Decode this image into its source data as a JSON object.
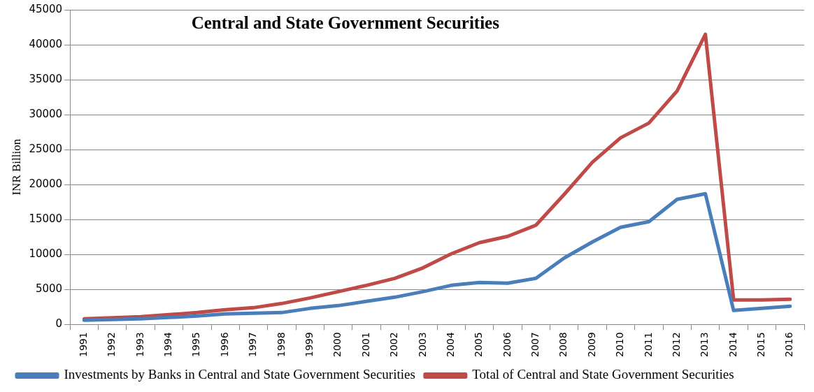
{
  "chart_data": {
    "type": "line",
    "title": "Central and State Government Securities",
    "ylabel": "INR Billion",
    "categories": [
      "1991",
      "1992",
      "1993",
      "1994",
      "1995",
      "1996",
      "1997",
      "1998",
      "1999",
      "2000",
      "2001",
      "2002",
      "2003",
      "2004",
      "2005",
      "2006",
      "2007",
      "2008",
      "2009",
      "2010",
      "2011",
      "2012",
      "2013",
      "2014",
      "2015",
      "2016"
    ],
    "series": [
      {
        "name": "Investments by Banks in Central and State Government Securities",
        "color": "#4a7ebb",
        "values": [
          600,
          700,
          800,
          1000,
          1200,
          1500,
          1600,
          1700,
          2300,
          2700,
          3300,
          3900,
          4700,
          5600,
          6000,
          5900,
          6600,
          9500,
          11800,
          13900,
          14700,
          17900,
          18700,
          2000,
          2300,
          2600
        ]
      },
      {
        "name": "Total of Central and State Government Securities",
        "color": "#be4b48",
        "values": [
          800,
          950,
          1100,
          1400,
          1700,
          2100,
          2400,
          3000,
          3800,
          4700,
          5600,
          6600,
          8100,
          10100,
          11700,
          12600,
          14200,
          18600,
          23200,
          26700,
          28800,
          33400,
          41500,
          3500,
          3500,
          3600
        ]
      }
    ],
    "ylim": [
      0,
      45000
    ],
    "yticks": [
      0,
      5000,
      10000,
      15000,
      20000,
      25000,
      30000,
      35000,
      40000,
      45000
    ],
    "grid": "y",
    "legend": "bottom",
    "marker": "none",
    "line_style": "solid"
  }
}
